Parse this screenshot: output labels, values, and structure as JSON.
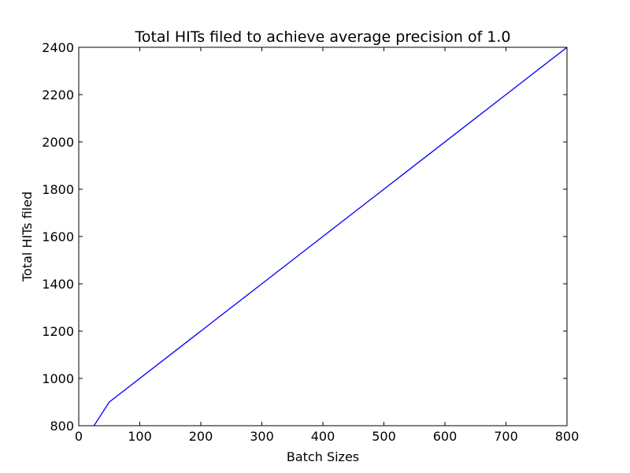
{
  "chart_data": {
    "type": "line",
    "title": "Total HITs filed to achieve average precision of 1.0",
    "xlabel": "Batch Sizes",
    "ylabel": "Total HITs filed",
    "xlim": [
      0,
      800
    ],
    "ylim": [
      800,
      2400
    ],
    "x_ticks": [
      0,
      100,
      200,
      300,
      400,
      500,
      600,
      700,
      800
    ],
    "y_ticks": [
      800,
      1000,
      1200,
      1400,
      1600,
      1800,
      2000,
      2200,
      2400
    ],
    "grid": false,
    "series": [
      {
        "color": "#0000ff",
        "points": [
          {
            "x": 25,
            "y": 800
          },
          {
            "x": 50,
            "y": 900
          },
          {
            "x": 800,
            "y": 2400
          }
        ]
      }
    ]
  }
}
